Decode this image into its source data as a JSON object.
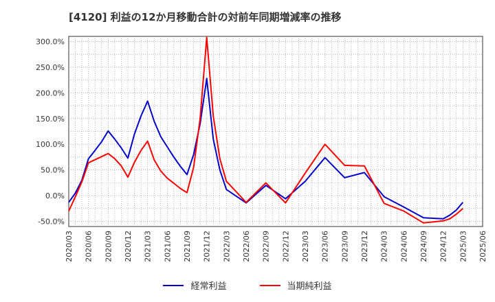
{
  "chart_data": {
    "type": "line",
    "title": "[4120]  利益の12か月移動合計の対前年同期増減率の推移",
    "xlabel": "",
    "ylabel": "",
    "ylim": [
      -60,
      310
    ],
    "xlim": [
      "2020/03",
      "2025/06"
    ],
    "yticks": [
      -50,
      0,
      50,
      100,
      150,
      200,
      250,
      300
    ],
    "ytick_labels": [
      "-50.0%",
      "0.0%",
      "50.0%",
      "100.0%",
      "150.0%",
      "200.0%",
      "250.0%",
      "300.0%"
    ],
    "xtick_labels": [
      "2020/03",
      "2020/06",
      "2020/09",
      "2020/12",
      "2021/03",
      "2021/06",
      "2021/09",
      "2021/12",
      "2022/03",
      "2022/06",
      "2022/09",
      "2022/12",
      "2023/03",
      "2023/06",
      "2023/09",
      "2023/12",
      "2024/03",
      "2024/06",
      "2024/09",
      "2024/12",
      "2025/03",
      "2025/06"
    ],
    "grid": true,
    "legend_position": "bottom-center",
    "series": [
      {
        "name": "経常利益",
        "color": "#0000cc",
        "points": [
          [
            "2020/03",
            -13
          ],
          [
            "2020/04",
            5
          ],
          [
            "2020/05",
            30
          ],
          [
            "2020/06",
            72
          ],
          [
            "2020/07",
            88
          ],
          [
            "2020/08",
            105
          ],
          [
            "2020/09",
            126
          ],
          [
            "2020/10",
            110
          ],
          [
            "2020/11",
            93
          ],
          [
            "2020/12",
            73
          ],
          [
            "2020/12b",
            73
          ],
          [
            "2021/01",
            120
          ],
          [
            "2021/02",
            155
          ],
          [
            "2021/03",
            184
          ],
          [
            "2021/04",
            145
          ],
          [
            "2021/05",
            115
          ],
          [
            "2021/06",
            95
          ],
          [
            "2021/07",
            75
          ],
          [
            "2021/08",
            57
          ],
          [
            "2021/09",
            41
          ],
          [
            "2021/10",
            80
          ],
          [
            "2021/11",
            140
          ],
          [
            "2021/12",
            228
          ],
          [
            "2022/01",
            110
          ],
          [
            "2022/02",
            50
          ],
          [
            "2022/03",
            12
          ],
          [
            "2022/06",
            -14
          ],
          [
            "2022/09",
            20
          ],
          [
            "2022/12",
            -6
          ],
          [
            "2023/03",
            28
          ],
          [
            "2023/06",
            74
          ],
          [
            "2023/09",
            35
          ],
          [
            "2023/12",
            45
          ],
          [
            "2024/03",
            -2
          ],
          [
            "2024/06",
            -22
          ],
          [
            "2024/09",
            -43
          ],
          [
            "2024/12",
            -45
          ],
          [
            "2025/01",
            -38
          ],
          [
            "2025/02",
            -28
          ],
          [
            "2025/03",
            -13
          ]
        ]
      },
      {
        "name": "当期純利益",
        "color": "#ff0000",
        "points": [
          [
            "2020/03",
            -30
          ],
          [
            "2020/04",
            -2
          ],
          [
            "2020/05",
            27
          ],
          [
            "2020/06",
            64
          ],
          [
            "2020/07",
            70
          ],
          [
            "2020/08",
            76
          ],
          [
            "2020/09",
            82
          ],
          [
            "2020/10",
            72
          ],
          [
            "2020/11",
            58
          ],
          [
            "2020/12",
            36
          ],
          [
            "2021/01",
            65
          ],
          [
            "2021/02",
            88
          ],
          [
            "2021/03",
            106
          ],
          [
            "2021/04",
            70
          ],
          [
            "2021/05",
            48
          ],
          [
            "2021/06",
            34
          ],
          [
            "2021/07",
            24
          ],
          [
            "2021/08",
            14
          ],
          [
            "2021/09",
            6
          ],
          [
            "2021/10",
            55
          ],
          [
            "2021/11",
            150
          ],
          [
            "2021/12",
            308
          ],
          [
            "2022/01",
            155
          ],
          [
            "2022/02",
            72
          ],
          [
            "2022/03",
            28
          ],
          [
            "2022/06",
            -13
          ],
          [
            "2022/09",
            25
          ],
          [
            "2022/12",
            -14
          ],
          [
            "2023/03",
            44
          ],
          [
            "2023/06",
            100
          ],
          [
            "2023/09",
            59
          ],
          [
            "2023/12",
            58
          ],
          [
            "2024/03",
            -15
          ],
          [
            "2024/06",
            -30
          ],
          [
            "2024/09",
            -53
          ],
          [
            "2024/12",
            -49
          ],
          [
            "2025/01",
            -45
          ],
          [
            "2025/02",
            -36
          ],
          [
            "2025/03",
            -25
          ]
        ]
      }
    ]
  }
}
